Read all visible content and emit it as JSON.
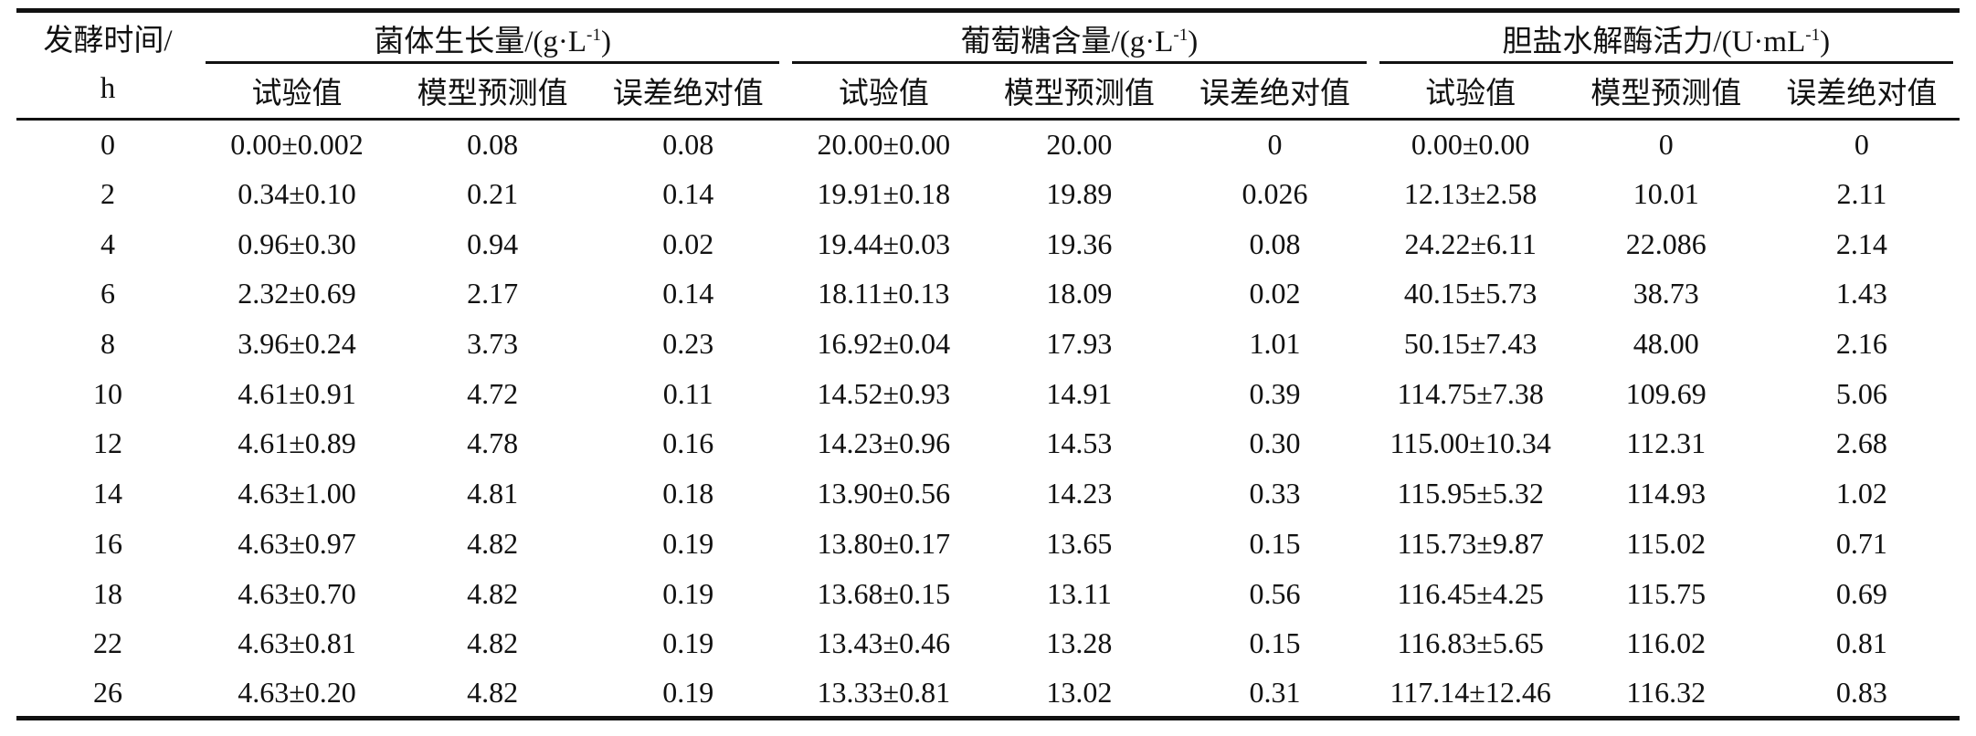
{
  "colors": {
    "text": "#111111",
    "rule": "#111111",
    "background": "#ffffff"
  },
  "table": {
    "time_header_line1": "发酵时间/",
    "time_header_line2": "h",
    "groups": [
      {
        "title_base": "菌体生长量/(g·L",
        "title_sup": "-1",
        "title_close": ")"
      },
      {
        "title_base": "葡萄糖含量/(g·L",
        "title_sup": "-1",
        "title_close": ")"
      },
      {
        "title_base": "胆盐水解酶活力/(U·mL",
        "title_sup": "-1",
        "title_close": ")"
      }
    ],
    "subheaders": [
      "试验值",
      "模型预测值",
      "误差绝对值"
    ],
    "rows": [
      {
        "time": "0",
        "cells": [
          "0.00±0.002",
          "0.08",
          "0.08",
          "20.00±0.00",
          "20.00",
          "0",
          "0.00±0.00",
          "0",
          "0"
        ]
      },
      {
        "time": "2",
        "cells": [
          "0.34±0.10",
          "0.21",
          "0.14",
          "19.91±0.18",
          "19.89",
          "0.026",
          "12.13±2.58",
          "10.01",
          "2.11"
        ]
      },
      {
        "time": "4",
        "cells": [
          "0.96±0.30",
          "0.94",
          "0.02",
          "19.44±0.03",
          "19.36",
          "0.08",
          "24.22±6.11",
          "22.086",
          "2.14"
        ]
      },
      {
        "time": "6",
        "cells": [
          "2.32±0.69",
          "2.17",
          "0.14",
          "18.11±0.13",
          "18.09",
          "0.02",
          "40.15±5.73",
          "38.73",
          "1.43"
        ]
      },
      {
        "time": "8",
        "cells": [
          "3.96±0.24",
          "3.73",
          "0.23",
          "16.92±0.04",
          "17.93",
          "1.01",
          "50.15±7.43",
          "48.00",
          "2.16"
        ]
      },
      {
        "time": "10",
        "cells": [
          "4.61±0.91",
          "4.72",
          "0.11",
          "14.52±0.93",
          "14.91",
          "0.39",
          "114.75±7.38",
          "109.69",
          "5.06"
        ]
      },
      {
        "time": "12",
        "cells": [
          "4.61±0.89",
          "4.78",
          "0.16",
          "14.23±0.96",
          "14.53",
          "0.30",
          "115.00±10.34",
          "112.31",
          "2.68"
        ]
      },
      {
        "time": "14",
        "cells": [
          "4.63±1.00",
          "4.81",
          "0.18",
          "13.90±0.56",
          "14.23",
          "0.33",
          "115.95±5.32",
          "114.93",
          "1.02"
        ]
      },
      {
        "time": "16",
        "cells": [
          "4.63±0.97",
          "4.82",
          "0.19",
          "13.80±0.17",
          "13.65",
          "0.15",
          "115.73±9.87",
          "115.02",
          "0.71"
        ]
      },
      {
        "time": "18",
        "cells": [
          "4.63±0.70",
          "4.82",
          "0.19",
          "13.68±0.15",
          "13.11",
          "0.56",
          "116.45±4.25",
          "115.75",
          "0.69"
        ]
      },
      {
        "time": "22",
        "cells": [
          "4.63±0.81",
          "4.82",
          "0.19",
          "13.43±0.46",
          "13.28",
          "0.15",
          "116.83±5.65",
          "116.02",
          "0.81"
        ]
      },
      {
        "time": "26",
        "cells": [
          "4.63±0.20",
          "4.82",
          "0.19",
          "13.33±0.81",
          "13.02",
          "0.31",
          "117.14±12.46",
          "116.32",
          "0.83"
        ]
      }
    ]
  }
}
